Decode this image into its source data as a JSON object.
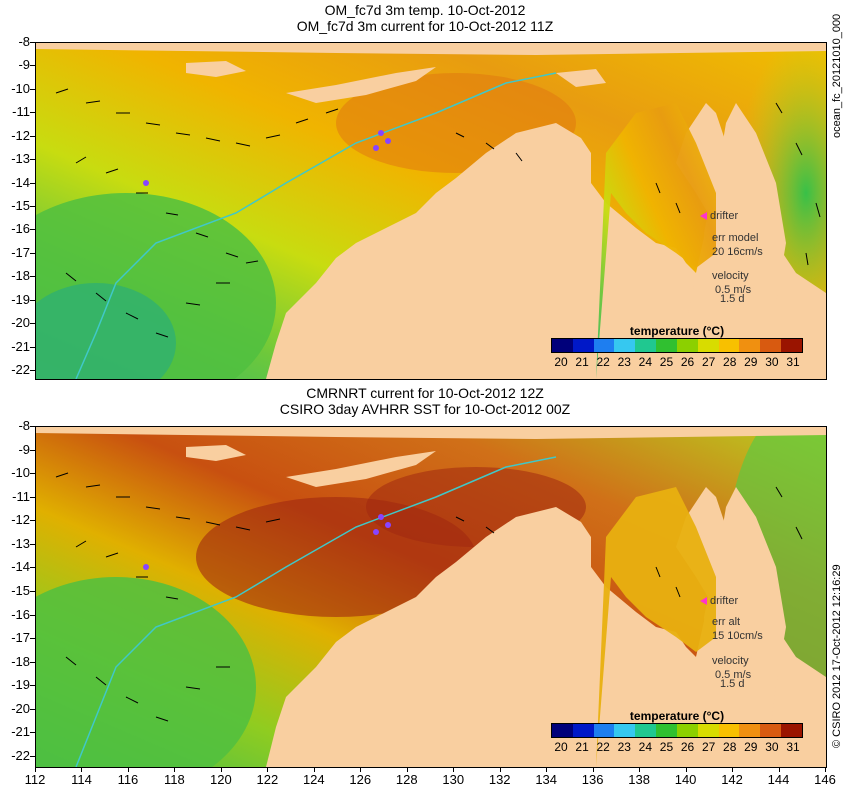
{
  "top_panel": {
    "title_line1": "OM_fc7d 3m temp. 10-Oct-2012",
    "title_line2": "OM_fc7d 3m current for 10-Oct-2012 11Z",
    "drifter_label": "drifter",
    "err_label": "err model",
    "err_value": "20 16cm/s",
    "velocity_label": "velocity",
    "velocity_value": "0.5 m/s",
    "velocity_time": "1.5 d",
    "side_label": "ocean_fc_20121010_000"
  },
  "bottom_panel": {
    "title_line1": "CMRNRT current for 10-Oct-2012 12Z",
    "title_line2": "CSIRO 3day AVHRR SST for 10-Oct-2012 00Z",
    "drifter_label": "drifter",
    "err_label": "err alt",
    "err_value": "15 10cm/s",
    "velocity_label": "velocity",
    "velocity_value": "0.5 m/s",
    "velocity_time": "1.5 d",
    "side_label": "© CSIRO 2012   17-Oct-2012 12:16:29"
  },
  "legend": {
    "title": "temperature (°C)",
    "ticks": [
      "20",
      "21",
      "22",
      "23",
      "24",
      "25",
      "26",
      "27",
      "28",
      "29",
      "30",
      "31"
    ],
    "colors": [
      "#00007a",
      "#0018c8",
      "#1e7ef0",
      "#36c8f0",
      "#20c890",
      "#30c030",
      "#8cd000",
      "#d8dc00",
      "#f8c000",
      "#f09010",
      "#d85a10",
      "#9a1400"
    ]
  },
  "axes": {
    "lat_ticks": [
      "-8",
      "-9",
      "-10",
      "-11",
      "-12",
      "-13",
      "-14",
      "-15",
      "-16",
      "-17",
      "-18",
      "-19",
      "-20",
      "-21",
      "-22"
    ],
    "lon_ticks": [
      "112",
      "114",
      "116",
      "118",
      "120",
      "122",
      "124",
      "126",
      "128",
      "130",
      "132",
      "134",
      "136",
      "138",
      "140",
      "142",
      "144",
      "146"
    ]
  },
  "colors": {
    "land": "#f9cfa0",
    "coast_line": "#40c8c8",
    "drifter": "#ff33cc"
  }
}
